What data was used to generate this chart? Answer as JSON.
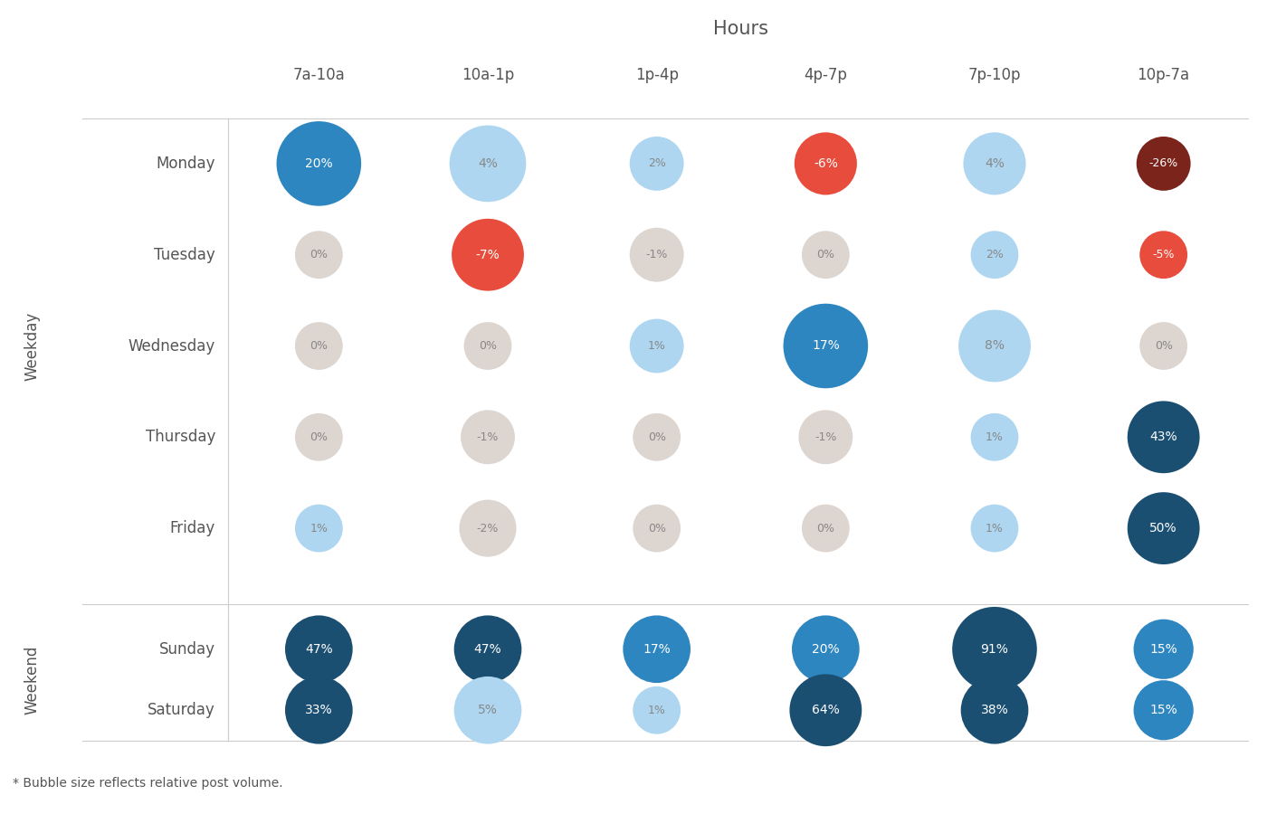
{
  "title": "Hours",
  "columns": [
    "7a-10a",
    "10a-1p",
    "1p-4p",
    "4p-7p",
    "7p-10p",
    "10p-7a"
  ],
  "rows": [
    "Monday",
    "Tuesday",
    "Wednesday",
    "Thursday",
    "Friday",
    "Sunday",
    "Saturday"
  ],
  "weekday_label": "Weekday",
  "weekend_label": "Weekend",
  "weekday_rows": [
    "Monday",
    "Tuesday",
    "Wednesday",
    "Thursday",
    "Friday"
  ],
  "weekend_rows": [
    "Sunday",
    "Saturday"
  ],
  "footnote": "* Bubble size reflects relative post volume.",
  "values": {
    "Monday": [
      20,
      4,
      2,
      -6,
      4,
      -26
    ],
    "Tuesday": [
      0,
      -7,
      -1,
      0,
      2,
      -5
    ],
    "Wednesday": [
      0,
      0,
      1,
      17,
      8,
      0
    ],
    "Thursday": [
      0,
      -1,
      0,
      -1,
      1,
      43
    ],
    "Friday": [
      1,
      -2,
      0,
      0,
      1,
      50
    ],
    "Sunday": [
      47,
      47,
      17,
      20,
      91,
      15
    ],
    "Saturday": [
      33,
      5,
      1,
      64,
      38,
      15
    ]
  },
  "bubble_sizes": {
    "Monday": [
      2200,
      1800,
      900,
      1200,
      1200,
      900
    ],
    "Tuesday": [
      700,
      1600,
      900,
      700,
      700,
      700
    ],
    "Wednesday": [
      700,
      700,
      900,
      2200,
      1600,
      700
    ],
    "Thursday": [
      700,
      900,
      700,
      900,
      700,
      1600
    ],
    "Friday": [
      700,
      1000,
      700,
      700,
      700,
      1600
    ],
    "Sunday": [
      1400,
      1400,
      1400,
      1400,
      2200,
      1100
    ],
    "Saturday": [
      1400,
      1400,
      700,
      1600,
      1400,
      1100
    ]
  },
  "color_positive_strong": "#1b4f72",
  "color_positive_mid": "#2e86c1",
  "color_positive_light": "#aed6f1",
  "color_neutral": "#ddd5d0",
  "color_negative_light": "#f1948a",
  "color_negative_mid": "#e74c3c",
  "color_negative_strong": "#7b241c",
  "background_color": "#ffffff",
  "text_color_light": "#999999",
  "text_color_dark": "#555555",
  "grid_color": "#cccccc"
}
